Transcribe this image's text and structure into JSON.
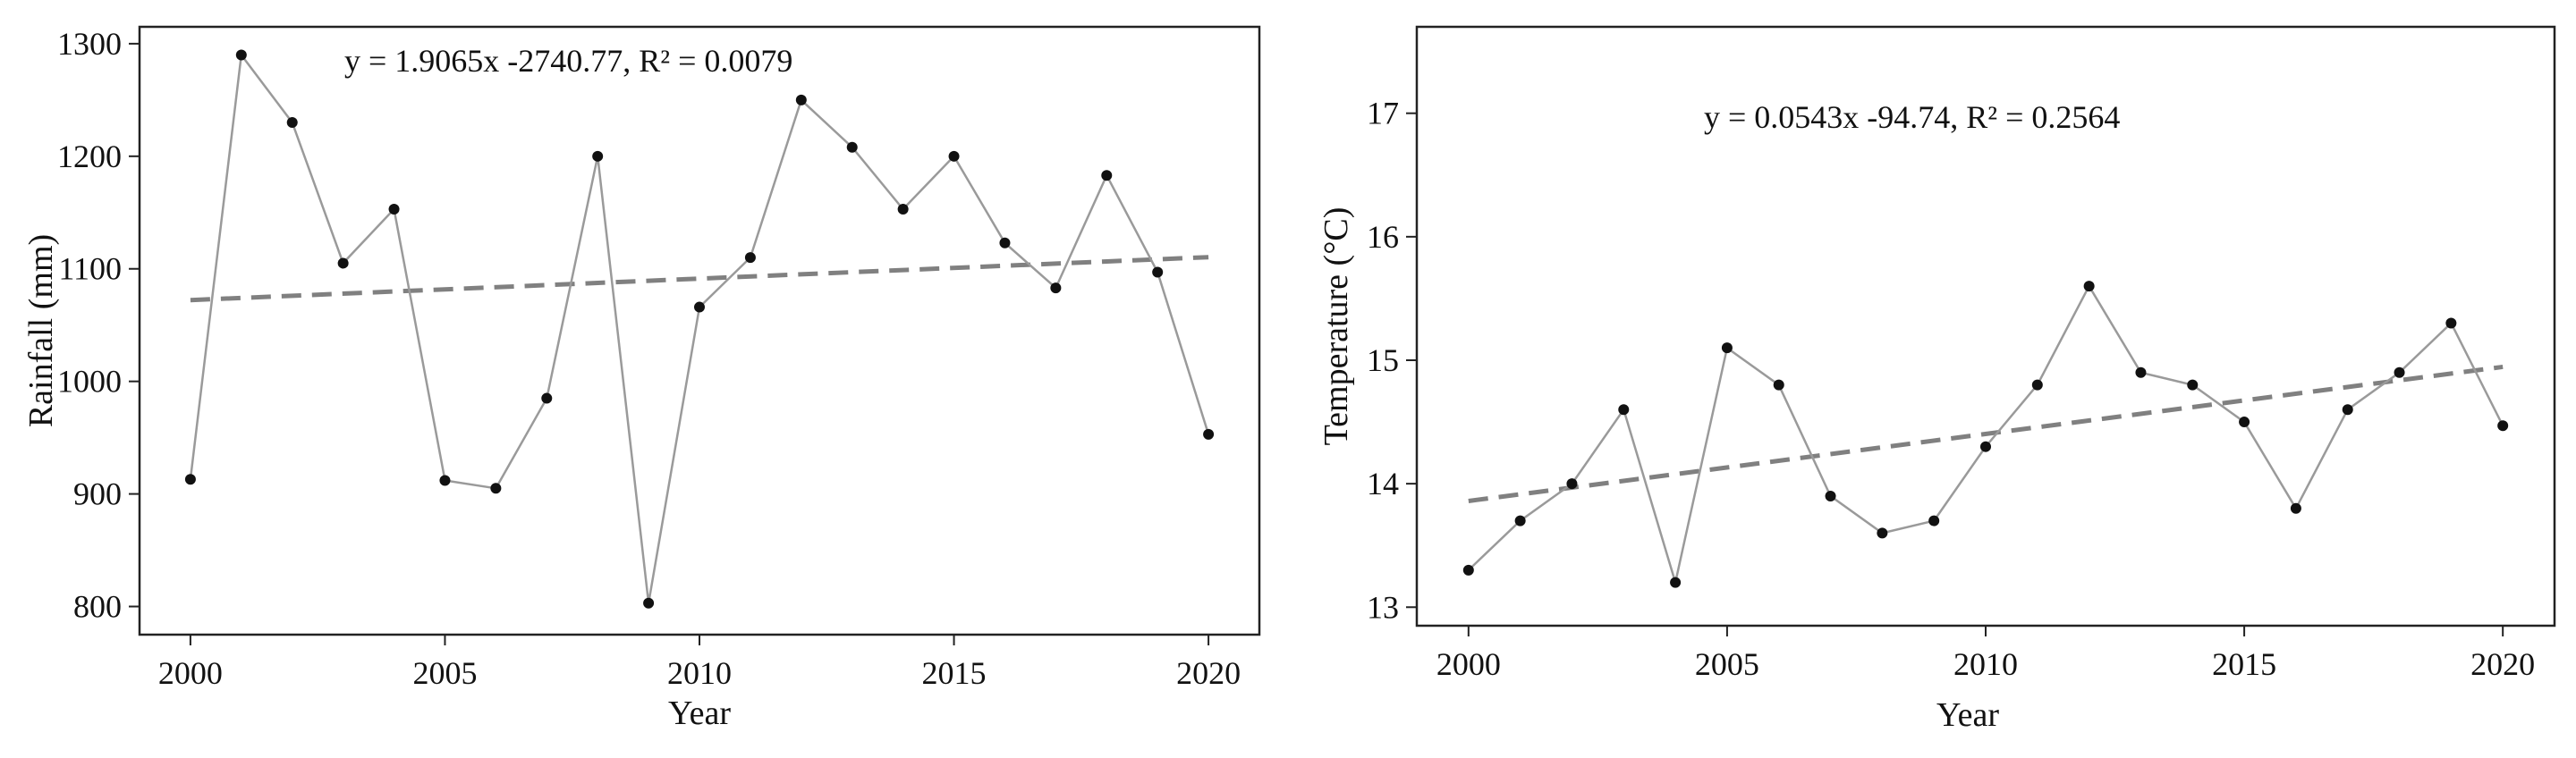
{
  "colors": {
    "points": "#111111",
    "series_line": "#9a9a9a",
    "trend_line": "#808080",
    "frame": "#222222"
  },
  "chart_data": [
    {
      "type": "line",
      "title": "",
      "xlabel": "Year",
      "ylabel": "Rainfall (mm)",
      "xlim": [
        1999.0,
        2021.0
      ],
      "ylim": [
        775,
        1315
      ],
      "x_ticks": [
        2000,
        2005,
        2010,
        2015,
        2020
      ],
      "y_ticks": [
        800,
        900,
        1000,
        1100,
        1200,
        1300
      ],
      "grid": false,
      "legend": "none",
      "equation": "y = 1.9065x -2740.77, R² = 0.0079",
      "x": [
        2000,
        2001,
        2002,
        2003,
        2004,
        2005,
        2006,
        2007,
        2008,
        2009,
        2010,
        2011,
        2012,
        2013,
        2014,
        2015,
        2016,
        2017,
        2018,
        2019,
        2020
      ],
      "values": [
        913,
        1290,
        1230,
        1105,
        1153,
        912,
        905,
        985,
        1200,
        803,
        1066,
        1110,
        1250,
        1208,
        1153,
        1200,
        1123,
        1083,
        1183,
        1097,
        953
      ],
      "trend": {
        "slope": 1.9065,
        "intercept": -2740.77
      }
    },
    {
      "type": "line",
      "title": "",
      "xlabel": "Year",
      "ylabel": "Temperature (°C)",
      "xlim": [
        1999.0,
        2021.0
      ],
      "ylim": [
        12.85,
        17.7
      ],
      "x_ticks": [
        2000,
        2005,
        2010,
        2015,
        2020
      ],
      "y_ticks": [
        13,
        14,
        15,
        16,
        17
      ],
      "grid": false,
      "legend": "none",
      "equation": "y = 0.0543x -94.74, R² = 0.2564",
      "x": [
        2000,
        2001,
        2002,
        2003,
        2004,
        2005,
        2006,
        2007,
        2008,
        2009,
        2010,
        2011,
        2012,
        2013,
        2014,
        2015,
        2016,
        2017,
        2018,
        2019,
        2020
      ],
      "values": [
        13.3,
        13.7,
        14.0,
        14.6,
        13.2,
        15.1,
        14.8,
        13.9,
        13.6,
        13.7,
        14.3,
        14.8,
        15.6,
        14.9,
        14.8,
        14.5,
        13.8,
        14.6,
        14.9,
        15.3,
        14.47
      ],
      "trend": {
        "slope": 0.0543,
        "intercept": -94.74
      }
    }
  ]
}
